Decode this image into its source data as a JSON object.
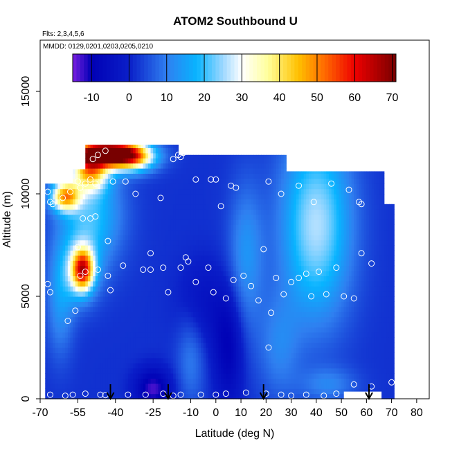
{
  "chart_data": {
    "type": "heatmap",
    "title": "ATOM2 Southbound U",
    "subtitle_lines": [
      "Flts: 2,3,4,5,6",
      "MMDD: 0129,0201,0203,0205,0210"
    ],
    "xlabel": "Latitude (deg N)",
    "ylabel": "Altitude (m)",
    "xlim": [
      -70,
      85
    ],
    "ylim": [
      0,
      17500
    ],
    "x_ticks": [
      -70,
      -55,
      -40,
      -25,
      -10,
      0,
      10,
      20,
      30,
      40,
      50,
      60,
      70,
      80
    ],
    "y_ticks": [
      0,
      5000,
      10000,
      15000
    ],
    "colorbar": {
      "min": -15,
      "max": 71,
      "ticks": [
        -10,
        0,
        10,
        20,
        30,
        40,
        50,
        60,
        70
      ],
      "stops": [
        {
          "value": -15,
          "color": "#7a1fe0"
        },
        {
          "value": -10,
          "color": "#0000b5"
        },
        {
          "value": 0,
          "color": "#0a1ec8"
        },
        {
          "value": 10,
          "color": "#2f7ff0"
        },
        {
          "value": 18,
          "color": "#08b4ff"
        },
        {
          "value": 25,
          "color": "#9ed8ff"
        },
        {
          "value": 30,
          "color": "#ffffff"
        },
        {
          "value": 37,
          "color": "#ffff9a"
        },
        {
          "value": 45,
          "color": "#ffc000"
        },
        {
          "value": 52,
          "color": "#ff6a00"
        },
        {
          "value": 60,
          "color": "#ee0000"
        },
        {
          "value": 71,
          "color": "#780000"
        }
      ]
    },
    "field": {
      "lat_range": [
        -68,
        71
      ],
      "background_value": 2,
      "columns": [
        {
          "x0": -68,
          "x1": -57,
          "top": 10500
        },
        {
          "x0": -57,
          "x1": -52,
          "top": 11200
        },
        {
          "x0": -52,
          "x1": -46,
          "top": 12400
        },
        {
          "x0": -46,
          "x1": -15,
          "top": 12400
        },
        {
          "x0": -15,
          "x1": 0,
          "top": 11900
        },
        {
          "x0": 0,
          "x1": 28,
          "top": 11900
        },
        {
          "x0": 28,
          "x1": 67,
          "top": 11100
        },
        {
          "x0": 67,
          "x1": 71,
          "top": 9500
        }
      ],
      "features": [
        {
          "lat": -44,
          "alt": 12000,
          "sx": 9,
          "sy": 400,
          "value": 70
        },
        {
          "lat": -34,
          "alt": 11800,
          "sx": 7,
          "sy": 500,
          "value": 40
        },
        {
          "lat": -50,
          "alt": 11200,
          "sx": 5,
          "sy": 700,
          "value": 40
        },
        {
          "lat": -60,
          "alt": 9900,
          "sx": 4,
          "sy": 500,
          "value": 42
        },
        {
          "lat": -53,
          "alt": 6300,
          "sx": 3,
          "sy": 700,
          "value": 48
        },
        {
          "lat": -50,
          "alt": 9000,
          "sx": 9,
          "sy": 1800,
          "value": 20
        },
        {
          "lat": -55,
          "alt": 6300,
          "sx": 6,
          "sy": 1200,
          "value": 16
        },
        {
          "lat": 40,
          "alt": 8500,
          "sx": 10,
          "sy": 3300,
          "value": 26
        },
        {
          "lat": 12,
          "alt": 7000,
          "sx": 5,
          "sy": 2500,
          "value": 13
        },
        {
          "lat": 25,
          "alt": 2500,
          "sx": 6,
          "sy": 1800,
          "value": 10
        },
        {
          "lat": -10,
          "alt": 2000,
          "sx": 4,
          "sy": 1600,
          "value": 10
        },
        {
          "lat": 45,
          "alt": 700,
          "sx": 8,
          "sy": 600,
          "value": 10
        },
        {
          "lat": -25,
          "alt": 500,
          "sx": 5,
          "sy": 700,
          "value": -13
        },
        {
          "lat": -5,
          "alt": 4500,
          "sx": 7,
          "sy": 1500,
          "value": -4
        },
        {
          "lat": 5,
          "alt": 2500,
          "sx": 4,
          "sy": 2000,
          "value": -9
        },
        {
          "lat": -62,
          "alt": 4500,
          "sx": 4,
          "sy": 1800,
          "value": 12
        }
      ]
    },
    "blank_regions": [
      {
        "x0": 51,
        "x1": 66,
        "y0": 0,
        "y1": 350
      }
    ],
    "observation_points": [
      [
        -67,
        10100
      ],
      [
        -66,
        9600
      ],
      [
        -65,
        9500
      ],
      [
        -61,
        9800
      ],
      [
        -58,
        10100
      ],
      [
        -55,
        10600
      ],
      [
        -54,
        10300
      ],
      [
        -52,
        10500
      ],
      [
        -50,
        10700
      ],
      [
        -48,
        10500
      ],
      [
        -49,
        11700
      ],
      [
        -47,
        11900
      ],
      [
        -44,
        12100
      ],
      [
        -41,
        10600
      ],
      [
        -36,
        10600
      ],
      [
        -32,
        10000
      ],
      [
        -22,
        9800
      ],
      [
        -17,
        11700
      ],
      [
        -15,
        11900
      ],
      [
        -13,
        12000
      ],
      [
        -14,
        11800
      ],
      [
        -8,
        10700
      ],
      [
        -2,
        10700
      ],
      [
        0,
        10700
      ],
      [
        6,
        10400
      ],
      [
        8,
        10300
      ],
      [
        21,
        10600
      ],
      [
        26,
        10000
      ],
      [
        33,
        10400
      ],
      [
        39,
        9600
      ],
      [
        46,
        10500
      ],
      [
        53,
        10200
      ],
      [
        57,
        9600
      ],
      [
        58,
        9500
      ],
      [
        64,
        11300
      ],
      [
        67,
        11300
      ],
      [
        69,
        11200
      ],
      [
        -53,
        8800
      ],
      [
        -50,
        8800
      ],
      [
        -48,
        8900
      ],
      [
        -43,
        7700
      ],
      [
        -55,
        7400
      ],
      [
        -26,
        7100
      ],
      [
        -11,
        6700
      ],
      [
        -12,
        6900
      ],
      [
        -3,
        6400
      ],
      [
        2,
        9400
      ],
      [
        7,
        5800
      ],
      [
        11,
        6000
      ],
      [
        14,
        5500
      ],
      [
        17,
        4800
      ],
      [
        19,
        7300
      ],
      [
        22,
        4200
      ],
      [
        24,
        5900
      ],
      [
        27,
        5100
      ],
      [
        30,
        5700
      ],
      [
        33,
        5900
      ],
      [
        36,
        6100
      ],
      [
        38,
        5000
      ],
      [
        41,
        6200
      ],
      [
        44,
        5100
      ],
      [
        48,
        6400
      ],
      [
        51,
        5000
      ],
      [
        55,
        4900
      ],
      [
        58,
        7100
      ],
      [
        62,
        6600
      ],
      [
        -67,
        5600
      ],
      [
        -66,
        5200
      ],
      [
        -59,
        3800
      ],
      [
        -56,
        4300
      ],
      [
        -54,
        6000
      ],
      [
        -52,
        6200
      ],
      [
        -47,
        6300
      ],
      [
        -43,
        6000
      ],
      [
        -42,
        5300
      ],
      [
        -37,
        6500
      ],
      [
        -29,
        6300
      ],
      [
        -26,
        6300
      ],
      [
        -21,
        6400
      ],
      [
        -19,
        5200
      ],
      [
        -14,
        6400
      ],
      [
        -8,
        5700
      ],
      [
        -1,
        5200
      ],
      [
        4,
        4900
      ],
      [
        21,
        2500
      ],
      [
        -66,
        200
      ],
      [
        -60,
        150
      ],
      [
        -57,
        200
      ],
      [
        -52,
        250
      ],
      [
        -46,
        200
      ],
      [
        -44,
        180
      ],
      [
        -35,
        200
      ],
      [
        -28,
        200
      ],
      [
        -21,
        250
      ],
      [
        -17,
        150
      ],
      [
        -14,
        200
      ],
      [
        -6,
        200
      ],
      [
        0,
        200
      ],
      [
        4,
        250
      ],
      [
        12,
        300
      ],
      [
        20,
        250
      ],
      [
        26,
        200
      ],
      [
        30,
        150
      ],
      [
        36,
        200
      ],
      [
        43,
        150
      ],
      [
        48,
        250
      ],
      [
        55,
        700
      ],
      [
        62,
        600
      ],
      [
        70,
        800
      ]
    ],
    "flight_markers": [
      -42,
      -19,
      19,
      61
    ]
  }
}
